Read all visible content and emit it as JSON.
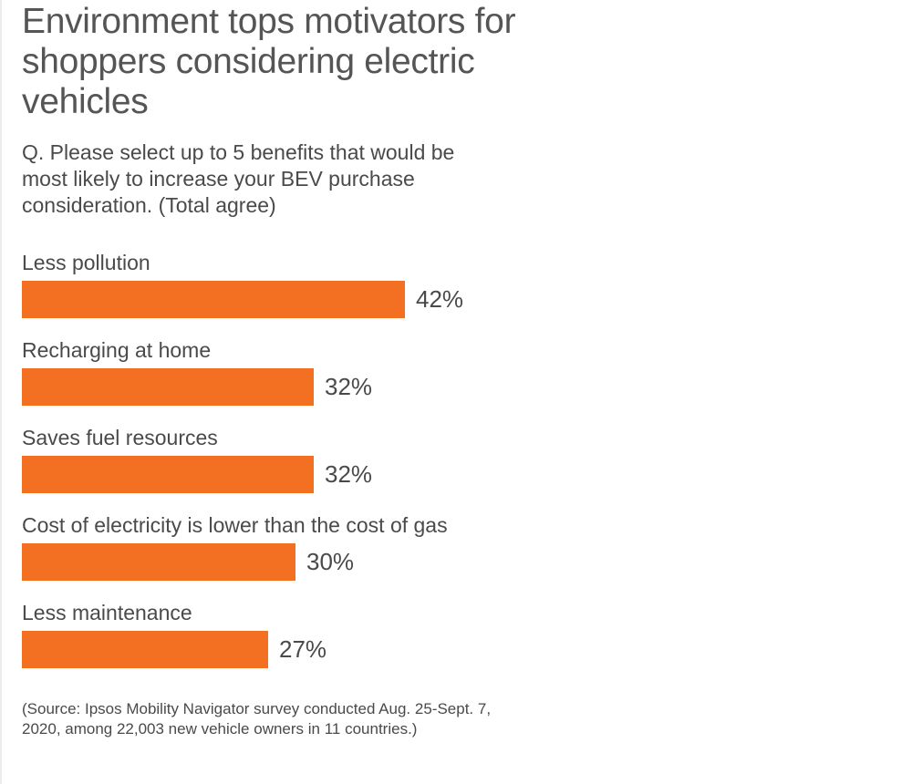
{
  "header": {
    "title": "Environment tops motivators for shoppers considering electric vehicles",
    "question": "Q. Please select up to 5 benefits that would be most likely to increase your BEV purchase consideration. (Total agree)"
  },
  "chart_data": {
    "type": "bar",
    "orientation": "horizontal",
    "categories": [
      "Less pollution",
      "Recharging at home",
      "Saves fuel resources",
      "Cost of electricity is lower than the cost of gas",
      "Less maintenance"
    ],
    "values": [
      42,
      32,
      32,
      30,
      27
    ],
    "value_labels": [
      "42%",
      "32%",
      "32%",
      "30%",
      "27%"
    ],
    "unit": "%",
    "bar_color": "#f37022",
    "grid": false,
    "legend": "none"
  },
  "footer": {
    "source": "(Source: Ipsos Mobility Navigator survey conducted Aug. 25-Sept. 7, 2020, among 22,003 new vehicle owners in 11 countries.)"
  }
}
